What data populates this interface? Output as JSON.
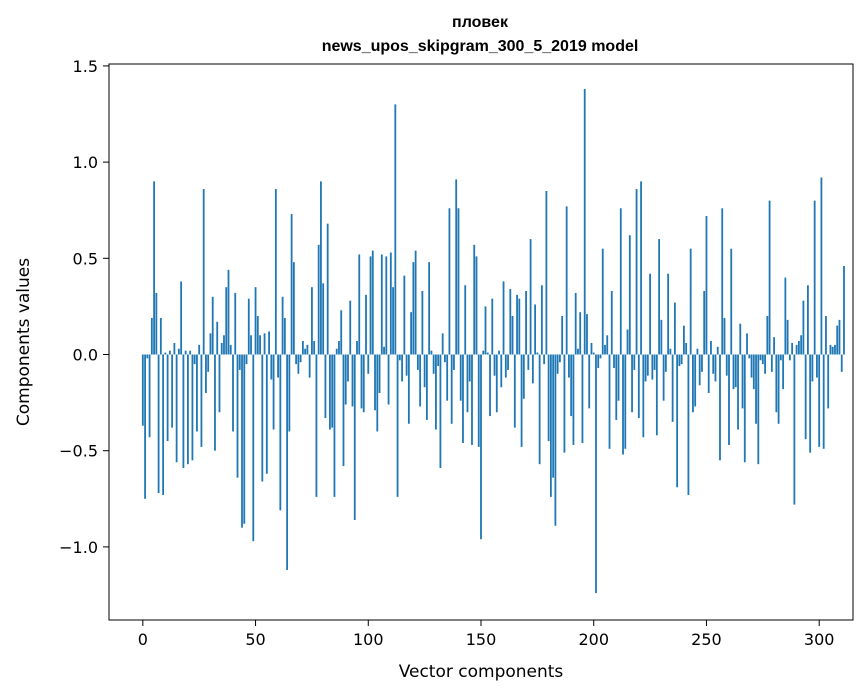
{
  "chart_data": {
    "type": "bar",
    "title": "пловек",
    "subtitle": "news_upos_skipgram_300_5_2019 model",
    "xlabel": "Vector components",
    "ylabel": "Components values",
    "xlim": [
      -15,
      315
    ],
    "ylim": [
      -1.38,
      1.51
    ],
    "xticks": [
      0,
      50,
      100,
      150,
      200,
      250,
      300
    ],
    "yticks": [
      -1.0,
      -0.5,
      0.0,
      0.5,
      1.0,
      1.5
    ],
    "xtick_labels": [
      "0",
      "50",
      "100",
      "150",
      "200",
      "250",
      "300"
    ],
    "ytick_labels": [
      "−1.0",
      "−0.5",
      "0.0",
      "0.5",
      "1.0",
      "1.5"
    ],
    "grid": false,
    "bar_color": "#1f77b4",
    "values": [
      -0.37,
      -0.75,
      -0.02,
      -0.43,
      0.19,
      0.9,
      0.32,
      -0.72,
      0.19,
      -0.73,
      0.01,
      -0.45,
      0.02,
      -0.38,
      0.06,
      -0.56,
      0.03,
      0.38,
      -0.59,
      0.02,
      -0.57,
      0.02,
      -0.55,
      -0.05,
      -0.4,
      0.05,
      -0.48,
      0.86,
      -0.2,
      -0.09,
      0.11,
      0.3,
      -0.5,
      0.17,
      -0.3,
      0.06,
      0.1,
      0.35,
      0.44,
      0.05,
      -0.4,
      0.32,
      -0.64,
      -0.08,
      -0.9,
      -0.88,
      -0.05,
      0.29,
      0.1,
      -0.97,
      0.35,
      0.2,
      0.1,
      -0.66,
      0.11,
      -0.62,
      0.12,
      -0.13,
      -0.39,
      0.86,
      -0.12,
      -0.81,
      0.3,
      0.19,
      -1.12,
      -0.4,
      0.73,
      0.48,
      -0.05,
      -0.1,
      -0.04,
      0.07,
      0.03,
      0.05,
      -0.12,
      0.35,
      0.07,
      -0.74,
      0.57,
      0.9,
      0.37,
      -0.33,
      0.68,
      -0.39,
      -0.38,
      -0.74,
      0.03,
      0.07,
      0.23,
      -0.58,
      -0.26,
      -0.14,
      0.28,
      -0.27,
      -0.86,
      0.07,
      0.52,
      -0.28,
      -0.3,
      0.31,
      -0.1,
      0.51,
      0.54,
      -0.29,
      -0.4,
      -0.2,
      0.52,
      0.04,
      0.51,
      -0.26,
      0.53,
      0.35,
      1.3,
      -0.74,
      -0.03,
      -0.14,
      0.41,
      -0.11,
      -0.36,
      0.22,
      0.48,
      0.54,
      -0.08,
      -0.27,
      0.33,
      -0.17,
      -0.34,
      0.48,
      0.02,
      -0.1,
      -0.39,
      -0.06,
      -0.59,
      0.11,
      -0.04,
      -0.24,
      0.76,
      -0.36,
      -0.08,
      0.91,
      0.76,
      -0.24,
      -0.46,
      0.36,
      -0.3,
      -0.14,
      -0.47,
      0.57,
      0.51,
      -0.48,
      -0.96,
      0.02,
      0.25,
      0.01,
      -0.32,
      0.29,
      -0.11,
      -0.3,
      0.02,
      -0.17,
      0.38,
      -0.12,
      -0.08,
      0.34,
      0.2,
      -0.38,
      0.31,
      0.29,
      -0.48,
      -0.23,
      0.33,
      -0.08,
      0.6,
      -0.15,
      0.26,
      0.01,
      -0.57,
      0.36,
      -0.05,
      0.85,
      -0.45,
      -0.74,
      -0.64,
      -0.89,
      -0.1,
      -0.04,
      0.2,
      -0.51,
      0.77,
      -0.12,
      -0.32,
      -0.47,
      0.32,
      0.03,
      0.22,
      -0.46,
      1.38,
      0.21,
      -0.28,
      0.06,
      0.01,
      -1.24,
      -0.07,
      -0.02,
      0.55,
      0.05,
      0.1,
      -0.49,
      0.33,
      -0.07,
      -0.34,
      -0.24,
      0.76,
      -0.52,
      -0.49,
      0.13,
      0.62,
      -0.3,
      -0.08,
      0.86,
      -0.33,
      0.9,
      -0.43,
      -0.14,
      -0.11,
      0.42,
      -0.13,
      -0.08,
      -0.42,
      0.6,
      0.18,
      -0.24,
      -0.09,
      0.42,
      0.03,
      -0.35,
      0.27,
      -0.69,
      -0.06,
      -0.05,
      0.15,
      0.06,
      -0.73,
      0.55,
      -0.3,
      -0.27,
      0.03,
      -0.16,
      -0.09,
      0.33,
      0.72,
      -0.2,
      0.07,
      -0.1,
      -0.14,
      0.04,
      -0.55,
      0.76,
      0.19,
      -0.11,
      -0.47,
      0.55,
      -0.18,
      -0.17,
      -0.39,
      0.16,
      -0.28,
      -0.56,
      0.11,
      -0.02,
      -0.12,
      -0.18,
      -0.36,
      -0.57,
      -0.03,
      -0.05,
      -0.1,
      0.2,
      0.8,
      -0.09,
      0.09,
      -0.3,
      -0.36,
      -0.03,
      -0.18,
      0.4,
      0.18,
      -0.03,
      0.06,
      -0.78,
      0.05,
      0.07,
      0.1,
      0.28,
      -0.44,
      0.36,
      -0.51,
      -0.14,
      0.8,
      -0.12,
      -0.48,
      0.92,
      -0.49,
      0.2,
      -0.28,
      0.05,
      0.04,
      0.05,
      0.15,
      0.18,
      -0.09,
      0.46
    ]
  }
}
